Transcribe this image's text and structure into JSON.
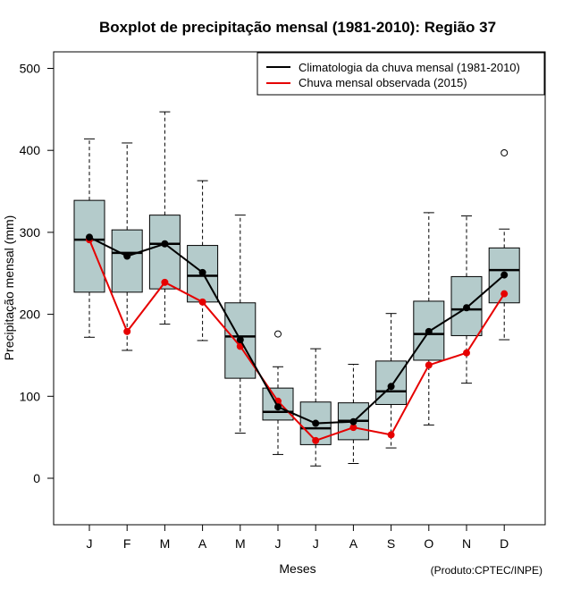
{
  "chart_data": {
    "type": "boxplot",
    "title": "Boxplot de precipitação mensal (1981-2010): Região 37",
    "xlabel": "Meses",
    "ylabel": "Precipitação mensal (mm)",
    "ylim": [
      -55,
      520
    ],
    "yticks": [
      0,
      100,
      200,
      300,
      400,
      500
    ],
    "credit": "(Produto:CPTEC/INPE)",
    "categories": [
      "J",
      "F",
      "M",
      "A",
      "M",
      "J",
      "J",
      "A",
      "S",
      "O",
      "N",
      "D"
    ],
    "boxes": [
      {
        "whisker_low": 172,
        "q1": 227,
        "median": 291,
        "q3": 339,
        "whisker_high": 414,
        "outliers": []
      },
      {
        "whisker_low": 156,
        "q1": 227,
        "median": 275,
        "q3": 303,
        "whisker_high": 409,
        "outliers": []
      },
      {
        "whisker_low": 188,
        "q1": 231,
        "median": 286,
        "q3": 321,
        "whisker_high": 447,
        "outliers": []
      },
      {
        "whisker_low": 168,
        "q1": 215,
        "median": 247,
        "q3": 284,
        "whisker_high": 363,
        "outliers": []
      },
      {
        "whisker_low": 55,
        "q1": 122,
        "median": 173,
        "q3": 214,
        "whisker_high": 321,
        "outliers": []
      },
      {
        "whisker_low": 29,
        "q1": 71,
        "median": 81,
        "q3": 110,
        "whisker_high": 136,
        "outliers": [
          176
        ]
      },
      {
        "whisker_low": 15,
        "q1": 41,
        "median": 61,
        "q3": 93,
        "whisker_high": 158,
        "outliers": []
      },
      {
        "whisker_low": 18,
        "q1": 47,
        "median": 70,
        "q3": 92,
        "whisker_high": 139,
        "outliers": []
      },
      {
        "whisker_low": 37,
        "q1": 90,
        "median": 106,
        "q3": 143,
        "whisker_high": 201,
        "outliers": []
      },
      {
        "whisker_low": 65,
        "q1": 144,
        "median": 176,
        "q3": 216,
        "whisker_high": 324,
        "outliers": []
      },
      {
        "whisker_low": 116,
        "q1": 174,
        "median": 206,
        "q3": 246,
        "whisker_high": 320,
        "outliers": []
      },
      {
        "whisker_low": 169,
        "q1": 214,
        "median": 254,
        "q3": 281,
        "whisker_high": 304,
        "outliers": [
          397
        ]
      }
    ],
    "series": [
      {
        "name": "Climatologia da chuva mensal (1981-2010)",
        "color": "#000000",
        "values": [
          294,
          271,
          286,
          251,
          169,
          87,
          67,
          69,
          112,
          179,
          208,
          248
        ]
      },
      {
        "name": "Chuva mensal observada (2015)",
        "color": "#e60000",
        "values": [
          291,
          179,
          239,
          215,
          161,
          94,
          46,
          62,
          53,
          138,
          153,
          225
        ]
      }
    ],
    "box_fill": "#b4cbcb",
    "legend_position": "top-right"
  }
}
